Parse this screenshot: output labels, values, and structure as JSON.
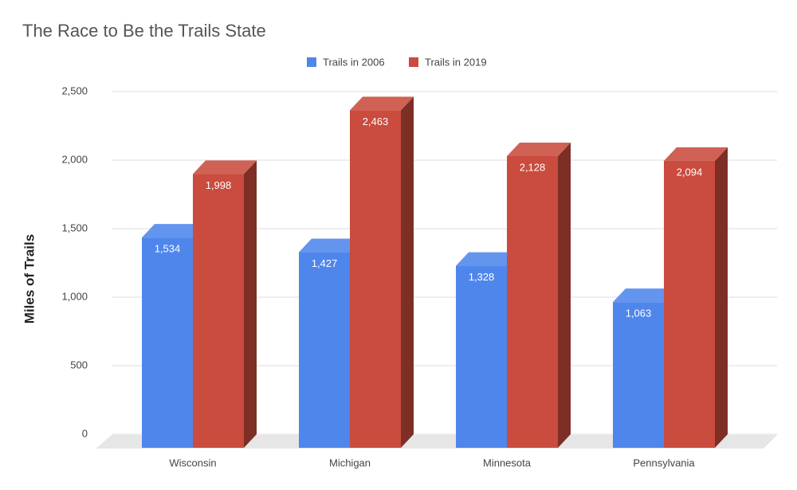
{
  "chart_data": {
    "type": "bar3d",
    "title": "The Race to Be the Trails State",
    "y_label": "Miles of Trails",
    "categories": [
      "Wisconsin",
      "Michigan",
      "Minnesota",
      "Pennsylvania"
    ],
    "series": [
      {
        "name": "Trails in 2006",
        "color": "#4f86ec",
        "values": [
          1534,
          1427,
          1328,
          1063
        ],
        "value_labels": [
          "1,534",
          "1,427",
          "1,328",
          "1,063"
        ]
      },
      {
        "name": "Trails in 2019",
        "color": "#c94c3e",
        "values": [
          1998,
          2463,
          2128,
          2094
        ],
        "value_labels": [
          "1,998",
          "2,463",
          "2,128",
          "2,094"
        ]
      }
    ],
    "ylim": [
      0,
      2500
    ],
    "yticks": [
      0,
      500,
      {
        "value": 1000,
        "label": "1,000"
      },
      {
        "value": 1500,
        "label": "1,500"
      },
      {
        "value": 2000,
        "label": "2,000"
      },
      {
        "value": 2500,
        "label": "2,500"
      }
    ],
    "grid": true,
    "legend": "top"
  }
}
